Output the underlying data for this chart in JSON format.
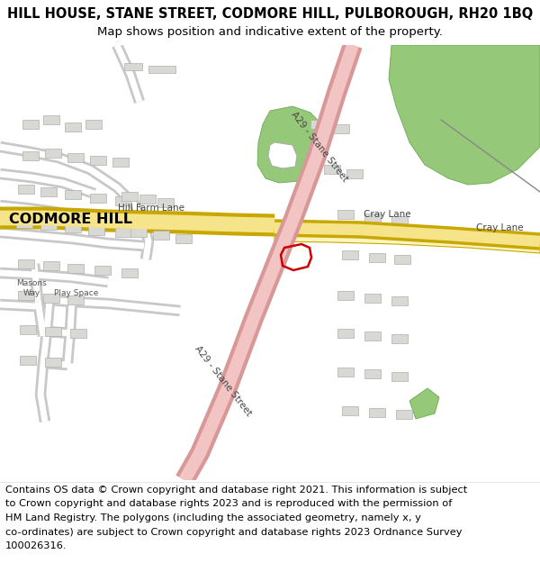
{
  "title_line1": "HILL HOUSE, STANE STREET, CODMORE HILL, PULBOROUGH, RH20 1BQ",
  "title_line2": "Map shows position and indicative extent of the property.",
  "footer_lines": [
    "Contains OS data © Crown copyright and database right 2021. This information is subject",
    "to Crown copyright and database rights 2023 and is reproduced with the permission of",
    "HM Land Registry. The polygons (including the associated geometry, namely x, y",
    "co-ordinates) are subject to Crown copyright and database rights 2023 Ordnance Survey",
    "100026316."
  ],
  "map_bg": "#f8f8f6",
  "road_main_color": "#f2c4c4",
  "road_main_border": "#d89898",
  "road_yellow_fill": "#f5e48a",
  "road_yellow_border": "#c8a800",
  "road_yellow_wide_fill": "#fdf5c0",
  "road_minor_color": "#ffffff",
  "road_minor_border": "#c8c8c8",
  "green_color": "#96c87a",
  "green_edge": "#6aaa50",
  "property_color": "#cc0000",
  "title_fs": 10.5,
  "subtitle_fs": 9.5,
  "footer_fs": 8.2,
  "map_label_fs": 7.5
}
